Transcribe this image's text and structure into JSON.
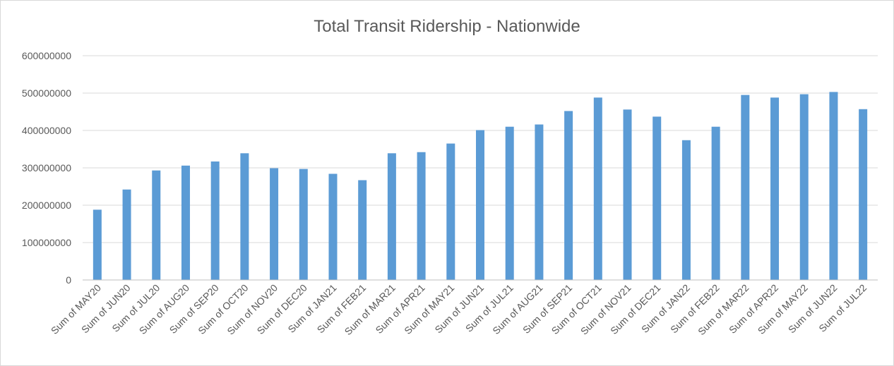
{
  "chart_data": {
    "type": "bar",
    "title": "Total Transit Ridership - Nationwide",
    "xlabel": "",
    "ylabel": "",
    "ylim": [
      0,
      600000000
    ],
    "yticks": [
      "0",
      "100000000",
      "200000000",
      "300000000",
      "400000000",
      "500000000",
      "600000000"
    ],
    "grid": true,
    "legend": "none",
    "bar_color": "#5b9bd5",
    "categories": [
      "Sum of MAY20",
      "Sum of JUN20",
      "Sum of JUL20",
      "Sum of AUG20",
      "Sum of SEP20",
      "Sum of OCT20",
      "Sum of NOV20",
      "Sum of DEC20",
      "Sum of JAN21",
      "Sum of FEB21",
      "Sum of MAR21",
      "Sum of APR21",
      "Sum of MAY21",
      "Sum of JUN21",
      "Sum of JUL21",
      "Sum of AUG21",
      "Sum of SEP21",
      "Sum of OCT21",
      "Sum of NOV21",
      "Sum of DEC21",
      "Sum of JAN22",
      "Sum of FEB22",
      "Sum of MAR22",
      "Sum of APR22",
      "Sum of MAY22",
      "Sum of JUN22",
      "Sum of JUL22"
    ],
    "values": [
      188000000,
      242000000,
      293000000,
      306000000,
      317000000,
      339000000,
      299000000,
      297000000,
      284000000,
      267000000,
      339000000,
      342000000,
      365000000,
      401000000,
      410000000,
      416000000,
      452000000,
      488000000,
      456000000,
      437000000,
      374000000,
      410000000,
      495000000,
      488000000,
      497000000,
      503000000,
      457000000
    ]
  }
}
